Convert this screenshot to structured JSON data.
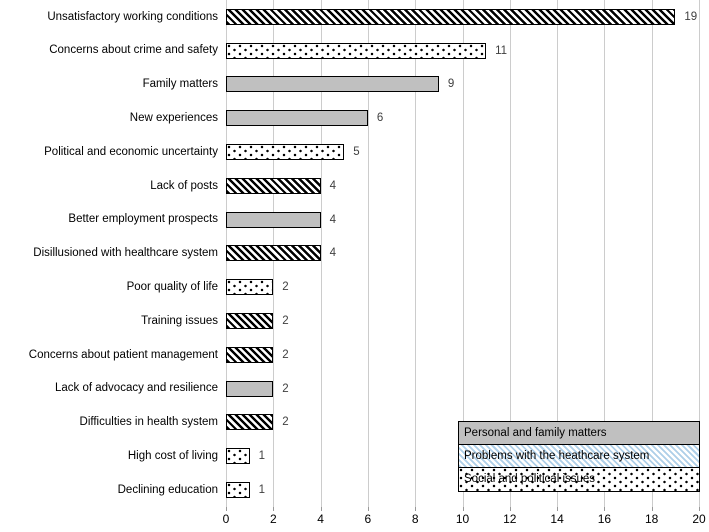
{
  "chart_data": {
    "type": "bar",
    "orientation": "horizontal",
    "title": "",
    "xlabel": "",
    "ylabel": "",
    "xlim": [
      0,
      20
    ],
    "x_ticks": [
      0,
      2,
      4,
      6,
      8,
      10,
      12,
      14,
      16,
      18,
      20
    ],
    "grid": true,
    "categories": [
      "Unsatisfactory working conditions",
      "Concerns about crime and safety",
      "Family matters",
      "New experiences",
      "Political and economic uncertainty",
      "Lack of posts",
      "Better employment prospects",
      "Disillusioned with healthcare system",
      "Poor quality of life",
      "Training issues",
      "Concerns about patient management",
      "Lack of advocacy and resilience",
      "Difficulties in health system",
      "High cost of living",
      "Declining education"
    ],
    "values": [
      19,
      11,
      9,
      6,
      5,
      4,
      4,
      4,
      2,
      2,
      2,
      2,
      2,
      1,
      1
    ],
    "value_labels": [
      "19",
      "11",
      "9",
      "6",
      "5",
      "4",
      "4",
      "4",
      "2",
      "2",
      "2",
      "2",
      "2",
      "1",
      "1"
    ],
    "bar_groups": [
      "healthcare",
      "social",
      "personal",
      "personal",
      "social",
      "healthcare",
      "personal",
      "healthcare",
      "social",
      "healthcare",
      "healthcare",
      "personal",
      "healthcare",
      "social",
      "social"
    ],
    "legend": {
      "position": "bottom-right",
      "items": [
        {
          "label": "Personal and family matters",
          "group": "personal"
        },
        {
          "label": "Problems with the heathcare system",
          "group": "healthcare"
        },
        {
          "label": "Social and political issues",
          "group": "social"
        }
      ]
    }
  },
  "style": {
    "colors": {
      "bar_fill_gray": "#c0c0c0",
      "bar_border": "#000000",
      "hatch_stroke": "#000000",
      "legend_hatch_blue": "#aecfe8",
      "gridline": "#cccccc",
      "tick": "#999999",
      "value_label": "#404040",
      "category_label": "#000000"
    },
    "patterns": {
      "personal": "solid-gray",
      "healthcare": "diagonal-hatch",
      "social": "dots"
    },
    "legend_patterns": {
      "personal": "solid-gray",
      "healthcare": "blue-diagonal-hatch",
      "social": "dots"
    }
  }
}
